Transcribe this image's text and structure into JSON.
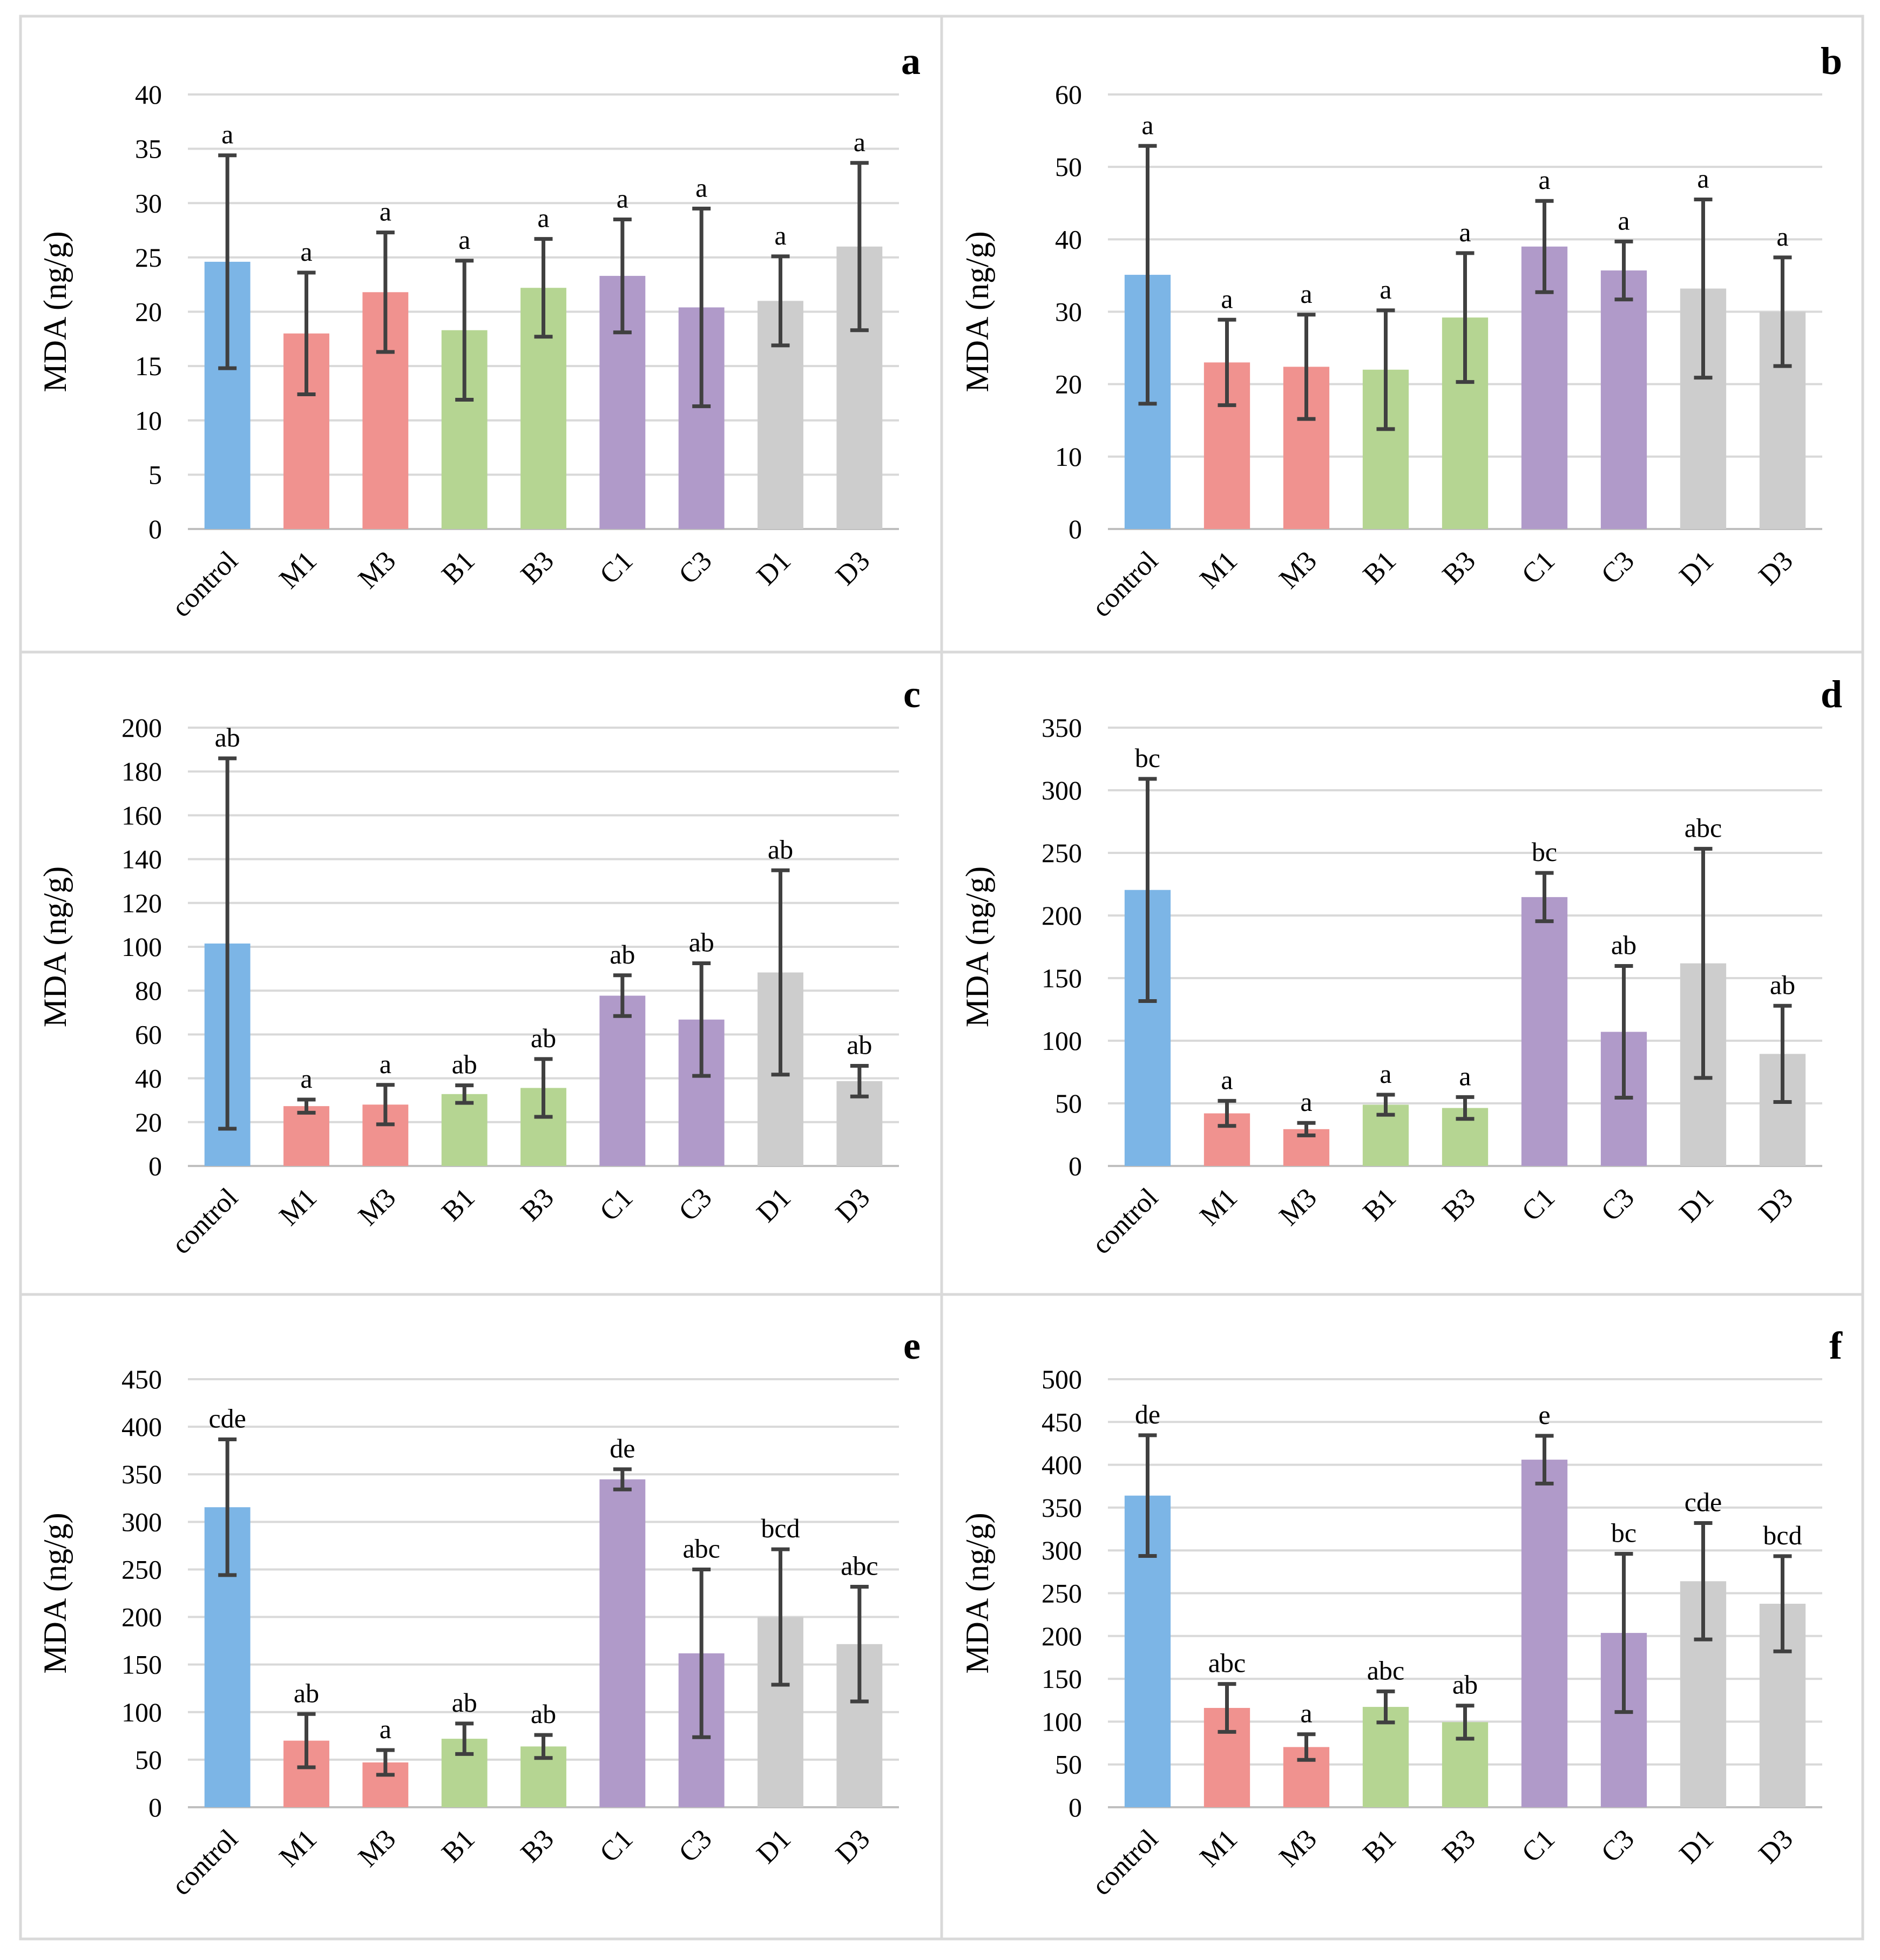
{
  "chart_data": [
    {
      "type": "bar",
      "panel_label": "a",
      "ylabel": "MDA (ng/g)",
      "ylim": [
        0,
        40
      ],
      "yticks": [
        0,
        5,
        10,
        15,
        20,
        25,
        30,
        35,
        40
      ],
      "categories": [
        "control",
        "M1",
        "M3",
        "B1",
        "B3",
        "C1",
        "C3",
        "D1",
        "D3"
      ],
      "values": [
        24.6,
        18.0,
        21.8,
        18.3,
        22.2,
        23.3,
        20.4,
        21.0,
        26.0
      ],
      "errors": [
        9.8,
        5.6,
        5.5,
        6.4,
        4.5,
        5.2,
        9.1,
        4.1,
        7.7
      ],
      "letters": [
        "a",
        "a",
        "a",
        "a",
        "a",
        "a",
        "a",
        "a",
        "a"
      ],
      "colors": [
        "#7cb5e6",
        "#f0928f",
        "#f0928f",
        "#b5d592",
        "#b5d592",
        "#b09ac9",
        "#b09ac9",
        "#cdcdcd",
        "#cdcdcd"
      ]
    },
    {
      "type": "bar",
      "panel_label": "b",
      "ylabel": "MDA (ng/g)",
      "ylim": [
        0,
        60
      ],
      "yticks": [
        0,
        10,
        20,
        30,
        40,
        50,
        60
      ],
      "categories": [
        "control",
        "M1",
        "M3",
        "B1",
        "B3",
        "C1",
        "C3",
        "D1",
        "D3"
      ],
      "values": [
        35.1,
        23.0,
        22.4,
        22.0,
        29.2,
        39.0,
        35.7,
        33.2,
        30.0
      ],
      "errors": [
        17.8,
        5.9,
        7.2,
        8.2,
        8.9,
        6.3,
        4.0,
        12.3,
        7.5
      ],
      "letters": [
        "a",
        "a",
        "a",
        "a",
        "a",
        "a",
        "a",
        "a",
        "a"
      ],
      "colors": [
        "#7cb5e6",
        "#f0928f",
        "#f0928f",
        "#b5d592",
        "#b5d592",
        "#b09ac9",
        "#b09ac9",
        "#cdcdcd",
        "#cdcdcd"
      ]
    },
    {
      "type": "bar",
      "panel_label": "c",
      "ylabel": "MDA (ng/g)",
      "ylim": [
        0,
        200
      ],
      "yticks": [
        0,
        20,
        40,
        60,
        80,
        100,
        120,
        140,
        160,
        180,
        200
      ],
      "categories": [
        "control",
        "M1",
        "M3",
        "B1",
        "B3",
        "C1",
        "C3",
        "D1",
        "D3"
      ],
      "values": [
        101.5,
        27.3,
        28.0,
        32.8,
        35.6,
        77.7,
        66.8,
        88.3,
        38.7
      ],
      "errors": [
        84.5,
        3.0,
        9.0,
        4.0,
        13.2,
        9.3,
        25.7,
        46.6,
        7.0
      ],
      "letters": [
        "ab",
        "a",
        "a",
        "ab",
        "ab",
        "ab",
        "ab",
        "ab",
        "ab"
      ],
      "colors": [
        "#7cb5e6",
        "#f0928f",
        "#f0928f",
        "#b5d592",
        "#b5d592",
        "#b09ac9",
        "#b09ac9",
        "#cdcdcd",
        "#cdcdcd"
      ]
    },
    {
      "type": "bar",
      "panel_label": "d",
      "ylabel": "MDA (ng/g)",
      "ylim": [
        0,
        350
      ],
      "yticks": [
        0,
        50,
        100,
        150,
        200,
        250,
        300,
        350
      ],
      "categories": [
        "control",
        "M1",
        "M3",
        "B1",
        "B3",
        "C1",
        "C3",
        "D1",
        "D3"
      ],
      "values": [
        220.4,
        42.0,
        29.4,
        48.9,
        46.3,
        214.7,
        107.1,
        161.8,
        89.5
      ],
      "errors": [
        88.7,
        10.0,
        5.0,
        8.0,
        8.7,
        19.3,
        52.6,
        91.5,
        38.4
      ],
      "letters": [
        "bc",
        "a",
        "a",
        "a",
        "a",
        "bc",
        "ab",
        "abc",
        "ab"
      ],
      "colors": [
        "#7cb5e6",
        "#f0928f",
        "#f0928f",
        "#b5d592",
        "#b5d592",
        "#b09ac9",
        "#b09ac9",
        "#cdcdcd",
        "#cdcdcd"
      ]
    },
    {
      "type": "bar",
      "panel_label": "e",
      "ylabel": "MDA (ng/g)",
      "ylim": [
        0,
        450
      ],
      "yticks": [
        0,
        50,
        100,
        150,
        200,
        250,
        300,
        350,
        400,
        450
      ],
      "categories": [
        "control",
        "M1",
        "M3",
        "B1",
        "B3",
        "C1",
        "C3",
        "D1",
        "D3"
      ],
      "values": [
        315.4,
        70.0,
        47.1,
        72.0,
        63.9,
        344.7,
        161.8,
        200.0,
        171.5
      ],
      "errors": [
        71.3,
        28.0,
        13.0,
        16.0,
        12.1,
        10.6,
        88.2,
        71.2,
        60.3
      ],
      "letters": [
        "cde",
        "ab",
        "a",
        "ab",
        "ab",
        "de",
        "abc",
        "bcd",
        "abc"
      ],
      "colors": [
        "#7cb5e6",
        "#f0928f",
        "#f0928f",
        "#b5d592",
        "#b5d592",
        "#b09ac9",
        "#b09ac9",
        "#cdcdcd",
        "#cdcdcd"
      ]
    },
    {
      "type": "bar",
      "panel_label": "f",
      "ylabel": "MDA (ng/g)",
      "ylim": [
        0,
        500
      ],
      "yticks": [
        0,
        50,
        100,
        150,
        200,
        250,
        300,
        350,
        400,
        450,
        500
      ],
      "categories": [
        "control",
        "M1",
        "M3",
        "B1",
        "B3",
        "C1",
        "C3",
        "D1",
        "D3"
      ],
      "values": [
        364.0,
        116.0,
        70.3,
        117.2,
        99.4,
        406.0,
        203.6,
        264.0,
        237.7
      ],
      "errors": [
        70.5,
        28.0,
        15.0,
        18.1,
        19.3,
        27.9,
        92.4,
        68.0,
        55.6
      ],
      "letters": [
        "de",
        "abc",
        "a",
        "abc",
        "ab",
        "e",
        "bc",
        "cde",
        "bcd"
      ],
      "colors": [
        "#7cb5e6",
        "#f0928f",
        "#f0928f",
        "#b5d592",
        "#b5d592",
        "#b09ac9",
        "#b09ac9",
        "#cdcdcd",
        "#cdcdcd"
      ]
    }
  ]
}
